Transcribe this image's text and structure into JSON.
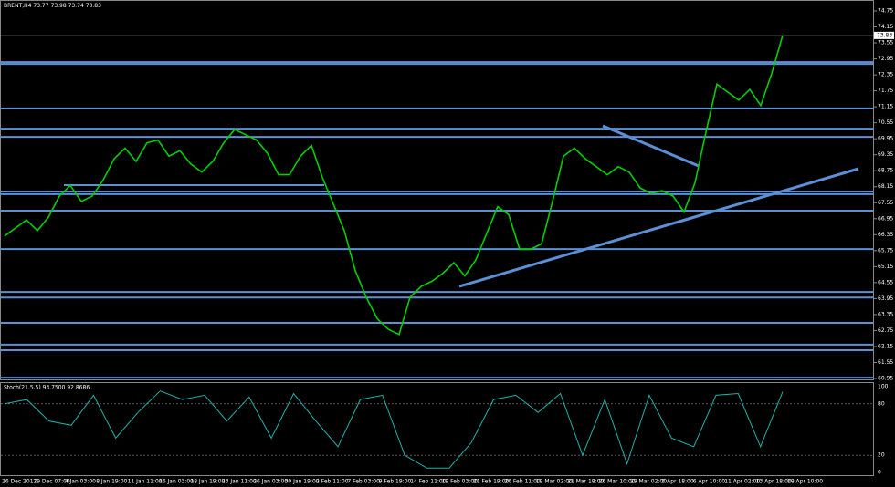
{
  "header": {
    "symbol": "BRENT,H4",
    "open": 73.77,
    "high": 73.98,
    "low": 73.74,
    "close": 73.83
  },
  "price_axis": {
    "ticks": [
      74.75,
      74.15,
      73.55,
      72.95,
      72.35,
      71.75,
      71.15,
      70.55,
      69.95,
      69.35,
      68.75,
      68.15,
      67.55,
      66.95,
      66.35,
      65.75,
      65.15,
      64.55,
      63.95,
      63.35,
      62.75,
      62.15,
      61.55,
      60.95
    ],
    "current": 73.83
  },
  "levels": [
    72.83,
    72.76,
    71.09,
    70.33,
    70.02,
    67.97,
    67.87,
    67.25,
    65.81,
    64.2,
    63.99,
    63.04,
    62.22,
    62.01,
    60.98
  ],
  "closes": [
    66.3,
    66.6,
    66.9,
    66.5,
    67.0,
    67.8,
    68.2,
    67.6,
    67.8,
    68.4,
    69.2,
    69.6,
    69.1,
    69.8,
    69.9,
    69.3,
    69.5,
    69.0,
    68.7,
    69.1,
    69.8,
    70.3,
    70.1,
    69.9,
    69.4,
    68.6,
    68.6,
    69.3,
    69.7,
    68.5,
    67.5,
    66.5,
    65.0,
    64.0,
    63.2,
    62.8,
    62.6,
    64.0,
    64.4,
    64.6,
    64.9,
    65.3,
    64.8,
    65.4,
    66.4,
    67.4,
    67.1,
    65.8,
    65.8,
    66.0,
    67.6,
    69.3,
    69.6,
    69.2,
    68.9,
    68.6,
    68.9,
    68.7,
    68.1,
    67.9,
    68.0,
    67.8,
    67.2,
    68.3,
    70.2,
    72.0,
    71.7,
    71.4,
    71.8,
    71.2,
    72.4,
    73.83
  ],
  "stoch": {
    "label": "Stoch(21,5,5) 93.7500 92.8686",
    "ticks": [
      100,
      80,
      20,
      0
    ],
    "values": [
      80,
      85,
      60,
      55,
      90,
      40,
      70,
      95,
      85,
      90,
      60,
      88,
      40,
      92,
      60,
      30,
      85,
      90,
      20,
      5,
      5,
      35,
      85,
      90,
      70,
      92,
      20,
      85,
      10,
      90,
      40,
      30,
      90,
      92,
      30,
      94
    ]
  },
  "time_axis": [
    "26 Dec 2017",
    "29 Dec 07:00",
    "4 Jan 03:00",
    "8 Jan 19:00",
    "11 Jan 11:00",
    "16 Jan 03:00",
    "18 Jan 19:00",
    "23 Jan 11:00",
    "26 Jan 03:00",
    "30 Jan 19:00",
    "2 Feb 11:00",
    "7 Feb 03:00",
    "9 Feb 19:00",
    "14 Feb 11:00",
    "19 Feb 03:00",
    "21 Feb 19:00",
    "26 Feb 11:00",
    "19 Mar 02:00",
    "21 Mar 18:00",
    "26 Mar 10:00",
    "29 Mar 02:00",
    "3 Apr 18:00",
    "6 Apr 10:00",
    "11 Apr 02:00",
    "13 Apr 18:00",
    "18 Apr 10:00"
  ]
}
